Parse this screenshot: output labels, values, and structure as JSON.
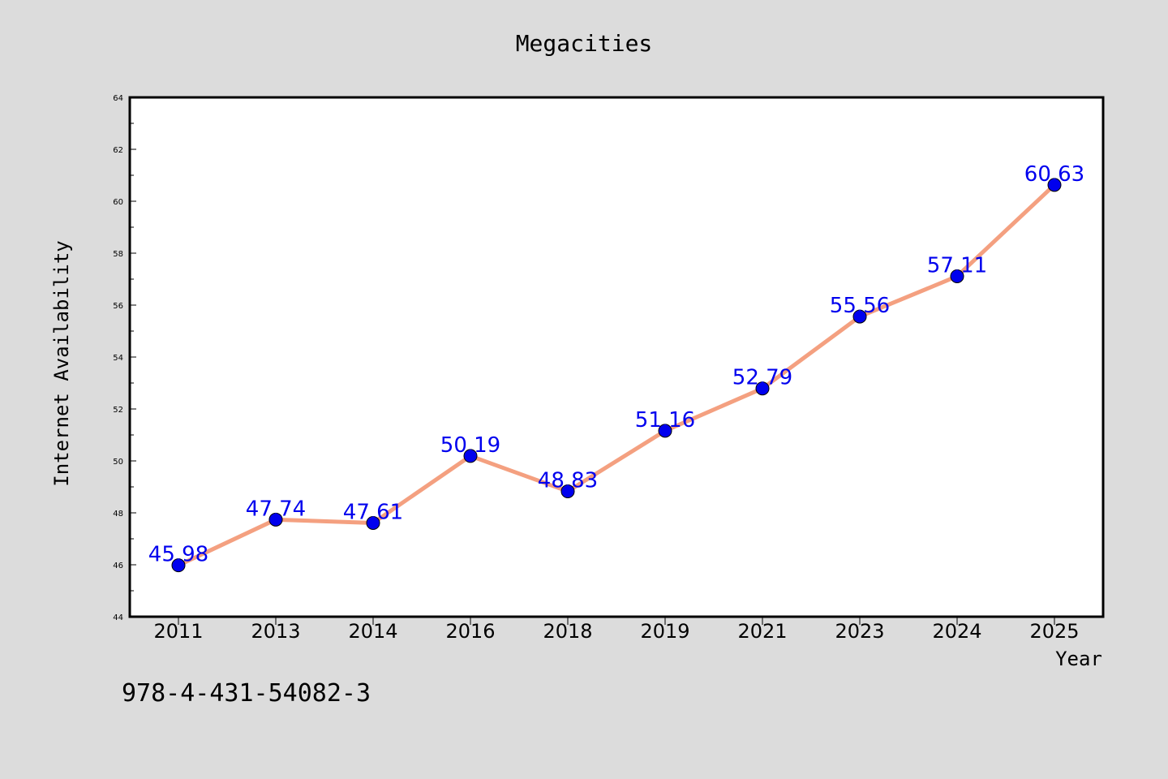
{
  "chart_data": {
    "type": "line",
    "title": "Megacities",
    "xlabel": "Year",
    "ylabel": "Internet Availability",
    "categories": [
      "2011",
      "2013",
      "2014",
      "2016",
      "2018",
      "2019",
      "2021",
      "2023",
      "2024",
      "2025"
    ],
    "series": [
      {
        "values": [
          45.98,
          47.74,
          47.61,
          50.19,
          48.83,
          51.16,
          52.79,
          55.56,
          57.11,
          60.63
        ],
        "labels": [
          "45.98",
          "47.74",
          "47.61",
          "50.19",
          "48.83",
          "51.16",
          "52.79",
          "55.56",
          "57.11",
          "60.63"
        ],
        "line_color": "#f4a080",
        "marker_color": "#0000ee"
      }
    ],
    "ylim": [
      44,
      64
    ],
    "yticks": [
      "44",
      "46",
      "48",
      "50",
      "52",
      "54",
      "56",
      "58",
      "60",
      "62",
      "64"
    ],
    "grid": false,
    "legend": "none",
    "label_color": "#0000ee"
  },
  "footer": {
    "isbn": "978-4-431-54082-3"
  },
  "colors": {
    "background": "#dcdcdc",
    "plot_background": "#ffffff"
  }
}
